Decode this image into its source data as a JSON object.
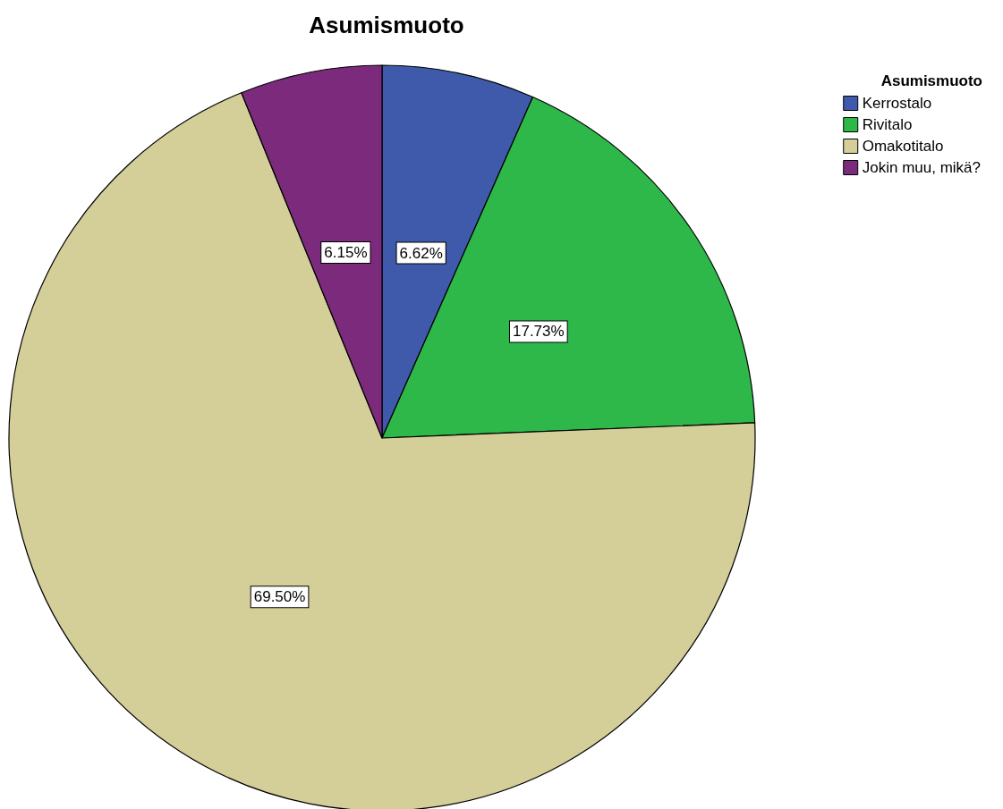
{
  "chart_data": {
    "type": "pie",
    "title": "Asumismuoto",
    "legend_title": "Asumismuoto",
    "categories": [
      "Kerrostalo",
      "Rivitalo",
      "Omakotitalo",
      "Jokin muu, mikä?"
    ],
    "values": [
      6.62,
      17.73,
      69.5,
      6.15
    ],
    "value_labels": [
      "6.62%",
      "17.73%",
      "69.50%",
      "6.15%"
    ],
    "colors": [
      "#3f5aaa",
      "#2eb84a",
      "#d4ce98",
      "#7b2a7c"
    ],
    "legend": "top right"
  }
}
